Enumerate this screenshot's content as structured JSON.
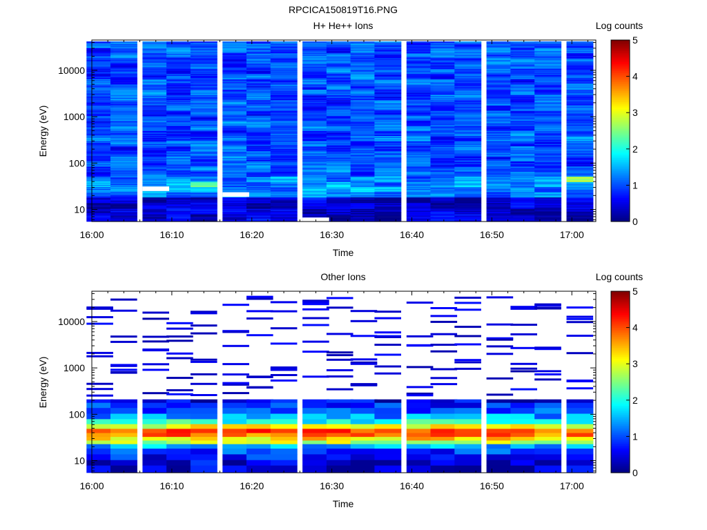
{
  "figure_title": "RPCICA150819T16.PNG",
  "colors": {
    "colormap": [
      "#00007f",
      "#0000ff",
      "#007fff",
      "#00ffff",
      "#7fff7f",
      "#ffff00",
      "#ff7f00",
      "#ff0000",
      "#7f0000"
    ]
  },
  "chart_data": [
    {
      "type": "heatmap",
      "title": "H+ He++ Ions",
      "xlabel": "Time",
      "ylabel": "Energy (eV)",
      "colorbar_label": "Log counts",
      "colorbar_ticks": [
        "0",
        "1",
        "2",
        "3",
        "4",
        "5"
      ],
      "colorbar_range": [
        0,
        5
      ],
      "x_ticks": [
        "16:00",
        "16:10",
        "16:20",
        "16:30",
        "16:40",
        "16:50",
        "17:00"
      ],
      "y_ticks": [
        "10",
        "100",
        "1000",
        "10000"
      ],
      "y_scale": "log",
      "xlim": [
        "16:00",
        "17:03"
      ],
      "ylim": [
        5.5,
        45000
      ],
      "time_columns": [
        "16:01",
        "16:04",
        "16:08",
        "16:11",
        "16:14",
        "16:18",
        "16:21",
        "16:24",
        "16:28",
        "16:31",
        "16:34",
        "16:37",
        "16:41",
        "16:44",
        "16:47",
        "16:51",
        "16:54",
        "16:57",
        "17:01"
      ],
      "energy_bands_eV": [
        7,
        9,
        12,
        16,
        21,
        27,
        35,
        45,
        58,
        75,
        97,
        125,
        160,
        205,
        265,
        340,
        440,
        570,
        730,
        940,
        1200,
        1550,
        2000,
        2600,
        3400,
        4400,
        5700,
        7400,
        9600,
        12400,
        16000,
        21000,
        27000,
        35000,
        42000
      ],
      "matrix_log_counts_summary": "per-band mean log counts: ~0.4 at 7-16 eV, ~1.3 at 21-45 eV (up to 2.8 near 17:01 at 45 eV), ~0.8-1.2 above 58 eV"
    },
    {
      "type": "heatmap",
      "title": "Other Ions",
      "xlabel": "Time",
      "ylabel": "Energy (eV)",
      "colorbar_label": "Log counts",
      "colorbar_ticks": [
        "0",
        "1",
        "2",
        "3",
        "4",
        "5"
      ],
      "colorbar_range": [
        0,
        5
      ],
      "x_ticks": [
        "16:00",
        "16:10",
        "16:20",
        "16:30",
        "16:40",
        "16:50",
        "17:00"
      ],
      "y_ticks": [
        "10",
        "100",
        "1000",
        "10000"
      ],
      "y_scale": "log",
      "xlim": [
        "16:00",
        "17:03"
      ],
      "ylim": [
        5.5,
        45000
      ],
      "time_columns": [
        "16:01",
        "16:04",
        "16:08",
        "16:11",
        "16:14",
        "16:18",
        "16:21",
        "16:24",
        "16:28",
        "16:31",
        "16:34",
        "16:37",
        "16:41",
        "16:44",
        "16:47",
        "16:51",
        "16:54",
        "16:57",
        "17:01"
      ],
      "dense_profile_log_counts": {
        "7": 0.4,
        "9": 0.5,
        "12": 0.7,
        "16": 0.9,
        "21": 1.5,
        "25": 2.8,
        "30": 3.3,
        "36": 3.8,
        "44": 4.0,
        "55": 3.0,
        "70": 2.0,
        "90": 1.4,
        "120": 1.0,
        "160": 0.8,
        "200": 0.5
      },
      "sparse_band_count_range": "scattered lines 250-35000 eV, log counts ~0.2-0.6"
    }
  ]
}
